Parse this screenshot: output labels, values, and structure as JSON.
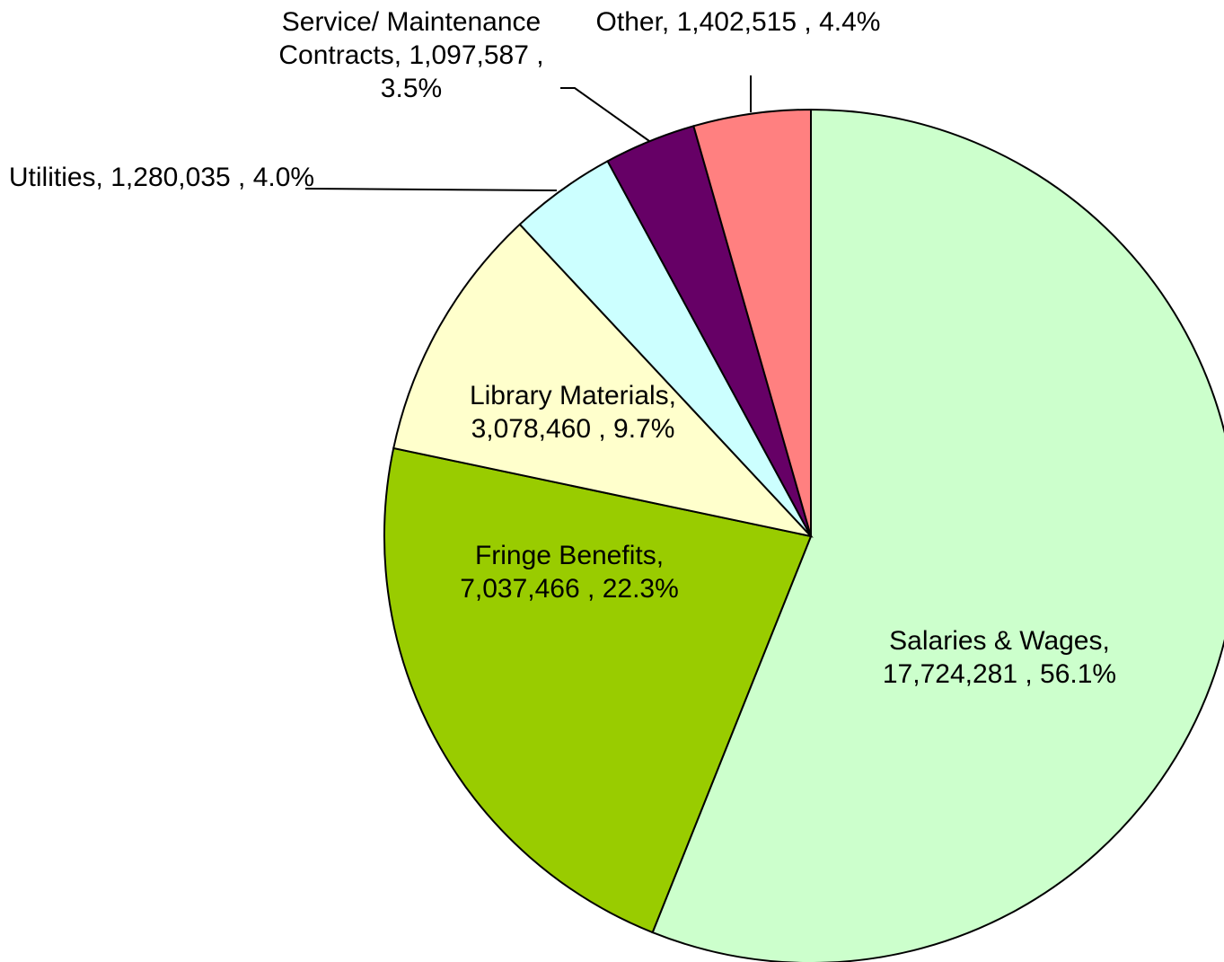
{
  "chart_data": {
    "type": "pie",
    "categories": [
      "Salaries & Wages,",
      "Fringe Benefits,",
      "Library Materials,",
      "Utilities,",
      "Service/ Maintenance Contracts,",
      "Other,"
    ],
    "values": [
      17724281,
      7037466,
      3078460,
      1280035,
      1097587,
      1402515
    ],
    "value_labels": [
      "17,724,281 ,",
      "7,037,466 ,",
      "3,078,460 ,",
      "1,280,035 ,",
      "1,097,587 ,",
      "1,402,515 ,"
    ],
    "percents": [
      56.1,
      22.3,
      9.7,
      4.0,
      3.5,
      4.4
    ],
    "percent_labels": [
      "56.1%",
      "22.3%",
      "9.7%",
      "4.0%",
      "3.5%",
      "4.4%"
    ],
    "colors": [
      "#ccffcc",
      "#99cc00",
      "#ffffcc",
      "#ccffff",
      "#660066",
      "#ff8080"
    ]
  }
}
